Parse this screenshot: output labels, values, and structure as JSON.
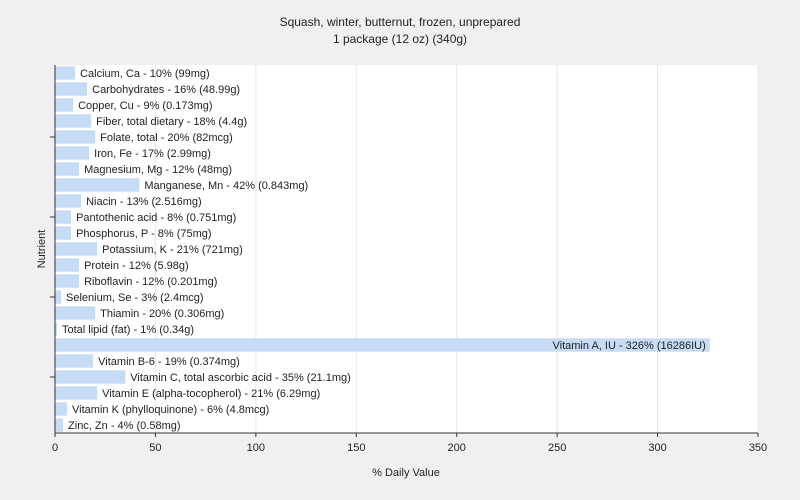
{
  "chart_data": {
    "type": "bar",
    "orientation": "horizontal",
    "title": "Squash, winter, butternut, frozen, unprepared",
    "subtitle": "1 package (12 oz) (340g)",
    "x_label": "% Daily Value",
    "y_label": "Nutrient",
    "categories": [
      "Calcium, Ca - 10% (99mg)",
      "Carbohydrates - 16% (48.99g)",
      "Copper, Cu - 9% (0.173mg)",
      "Fiber, total dietary - 18% (4.4g)",
      "Folate, total - 20% (82mcg)",
      "Iron, Fe - 17% (2.99mg)",
      "Magnesium, Mg - 12% (48mg)",
      "Manganese, Mn - 42% (0.843mg)",
      "Niacin - 13% (2.516mg)",
      "Pantothenic acid - 8% (0.751mg)",
      "Phosphorus, P - 8% (75mg)",
      "Potassium, K - 21% (721mg)",
      "Protein - 12% (5.98g)",
      "Riboflavin - 12% (0.201mg)",
      "Selenium, Se - 3% (2.4mcg)",
      "Thiamin - 20% (0.306mg)",
      "Total lipid (fat) - 1% (0.34g)",
      "Vitamin A, IU - 326% (16286IU)",
      "Vitamin B-6 - 19% (0.374mg)",
      "Vitamin C, total ascorbic acid - 35% (21.1mg)",
      "Vitamin E (alpha-tocopherol) - 21% (6.29mg)",
      "Vitamin K (phylloquinone) - 6% (4.8mcg)",
      "Zinc, Zn - 4% (0.58mg)"
    ],
    "values": [
      10,
      16,
      9,
      18,
      20,
      17,
      12,
      42,
      13,
      8,
      8,
      21,
      12,
      12,
      3,
      20,
      1,
      326,
      19,
      35,
      21,
      6,
      4
    ],
    "color": "#c6dcf5",
    "xlim": [
      0,
      350
    ],
    "xticks": [
      0,
      50,
      100,
      150,
      200,
      250,
      300,
      350
    ],
    "grid": true
  }
}
